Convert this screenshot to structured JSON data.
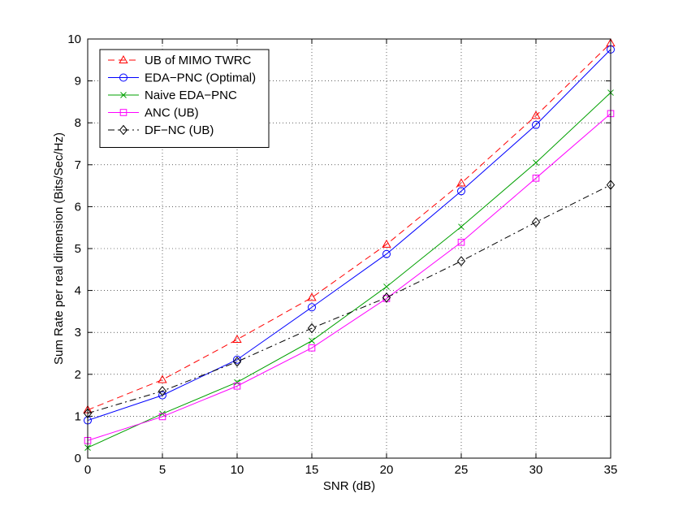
{
  "chart_data": {
    "type": "line",
    "title": "",
    "xlabel": "SNR (dB)",
    "ylabel": "Sum Rate per real dimension (Bits/Sec/Hz)",
    "xlim": [
      0,
      35
    ],
    "ylim": [
      0,
      10
    ],
    "xticks": [
      0,
      5,
      10,
      15,
      20,
      25,
      30,
      35
    ],
    "yticks": [
      0,
      1,
      2,
      3,
      4,
      5,
      6,
      7,
      8,
      9,
      10
    ],
    "grid": true,
    "legend_position": "top-left",
    "x": [
      0,
      5,
      10,
      15,
      20,
      25,
      30,
      35
    ],
    "series": [
      {
        "name": "UB of MIMO TWRC",
        "color": "#ff0000",
        "dash": "dashed",
        "marker": "triangle",
        "values": [
          1.15,
          1.87,
          2.83,
          3.83,
          5.1,
          6.56,
          8.17,
          9.9
        ]
      },
      {
        "name": "EDA−PNC (Optimal)",
        "color": "#0000ff",
        "dash": "solid",
        "marker": "circle",
        "values": [
          0.9,
          1.5,
          2.35,
          3.6,
          4.87,
          6.37,
          7.95,
          9.75
        ]
      },
      {
        "name": "Naive EDA−PNC",
        "color": "#00a000",
        "dash": "solid",
        "marker": "x",
        "values": [
          0.25,
          1.06,
          1.81,
          2.8,
          4.09,
          5.52,
          7.05,
          8.72
        ]
      },
      {
        "name": "ANC (UB)",
        "color": "#ff00ff",
        "dash": "solid",
        "marker": "square",
        "values": [
          0.42,
          0.99,
          1.72,
          2.63,
          3.81,
          5.15,
          6.68,
          8.22
        ]
      },
      {
        "name": "DF−NC (UB)",
        "color": "#000000",
        "dash": "dashdot",
        "marker": "diamond",
        "values": [
          1.07,
          1.6,
          2.3,
          3.1,
          3.83,
          4.7,
          5.63,
          6.52
        ]
      }
    ]
  }
}
